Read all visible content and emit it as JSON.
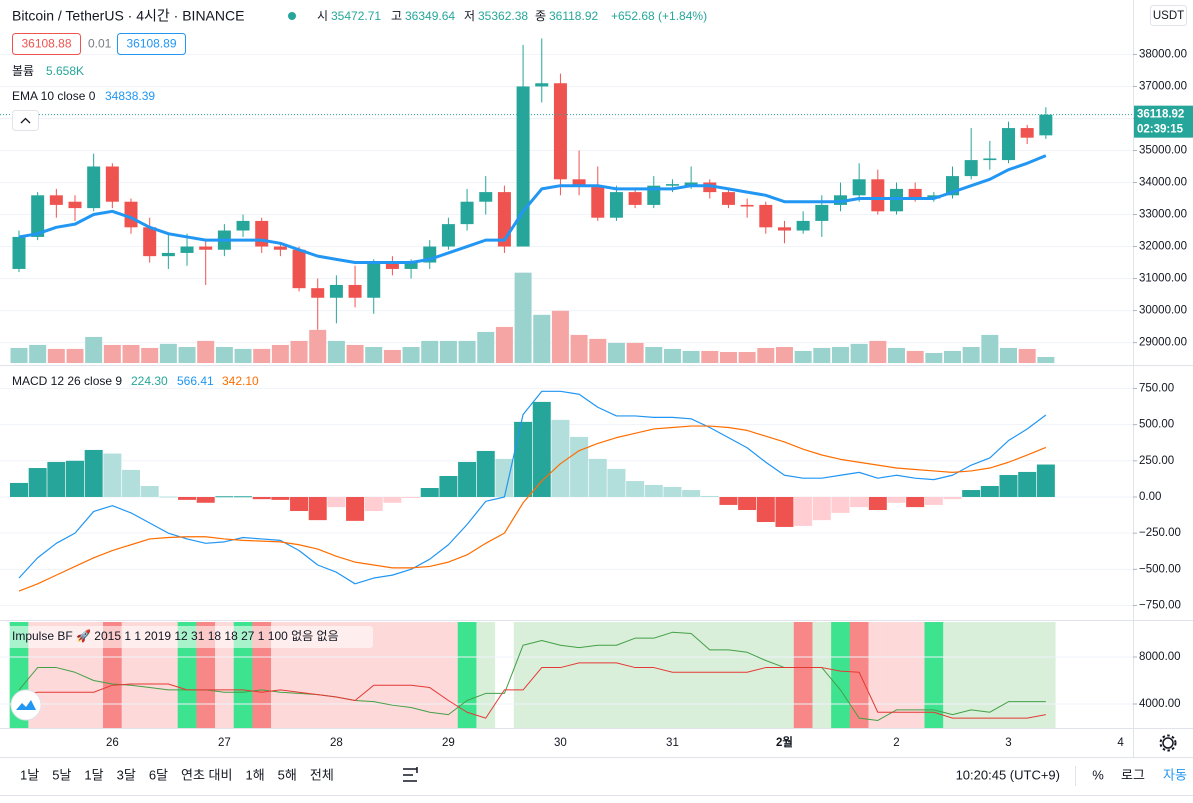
{
  "header": {
    "symbol": "Bitcoin / TetherUS · 4시간 · BINANCE",
    "open_label": "시",
    "high_label": "고",
    "low_label": "저",
    "close_label": "종",
    "change": "+652.68 (+1.84%)",
    "sell_price": "36108.88",
    "spread": "0.01",
    "buy_price": "36108.89",
    "currency": "USDT",
    "countdown": "02:39:15"
  },
  "chart_data": [
    {
      "type": "candlestick",
      "categories": [
        null,
        null,
        null,
        null,
        null,
        "26",
        null,
        null,
        null,
        null,
        null,
        "27",
        null,
        null,
        null,
        null,
        null,
        "28",
        null,
        null,
        null,
        null,
        null,
        "29",
        null,
        null,
        null,
        null,
        null,
        "30",
        null,
        null,
        null,
        null,
        null,
        "31",
        null,
        null,
        null,
        null,
        null,
        "2월",
        null,
        null,
        null,
        null,
        null,
        "2",
        null,
        null,
        null,
        null,
        null,
        "3",
        null,
        null,
        null,
        null,
        null,
        "4"
      ],
      "open": [
        31300,
        32300,
        33600,
        33400,
        33200,
        34500,
        33400,
        32600,
        31700,
        31800,
        32000,
        31900,
        32500,
        32800,
        32000,
        31900,
        30700,
        30400,
        30800,
        30400,
        31500,
        31300,
        31500,
        32000,
        32700,
        33400,
        33700,
        32000,
        37000,
        37100,
        34100,
        33900,
        32900,
        33700,
        33300,
        33900,
        33900,
        34000,
        33700,
        33300,
        33300,
        32600,
        32500,
        32800,
        33300,
        33600,
        34100,
        33100,
        33800,
        33500,
        33600,
        34200,
        34700,
        34700,
        35700,
        35472.71,
        null,
        null,
        null,
        null
      ],
      "high": [
        32500,
        33700,
        33800,
        33600,
        34900,
        34600,
        33500,
        32900,
        32400,
        32400,
        32200,
        32700,
        33000,
        32900,
        32100,
        32000,
        31000,
        31100,
        31400,
        31600,
        31700,
        31600,
        32200,
        32900,
        33800,
        34200,
        33900,
        38300,
        38500,
        37400,
        35000,
        34500,
        33900,
        33800,
        34200,
        34100,
        34500,
        34100,
        33800,
        33500,
        33400,
        32800,
        33100,
        33600,
        34000,
        34600,
        34400,
        34000,
        34000,
        33700,
        34500,
        35700,
        35300,
        35900,
        35800,
        36349.64,
        null,
        null,
        null,
        null
      ],
      "low": [
        31200,
        32200,
        32900,
        32800,
        33100,
        33200,
        32400,
        31500,
        31300,
        31400,
        30800,
        31700,
        32300,
        31800,
        31700,
        30600,
        29400,
        29600,
        30100,
        29900,
        31100,
        31000,
        31300,
        31900,
        32500,
        33000,
        31800,
        32000,
        36500,
        33600,
        33600,
        32800,
        32800,
        33200,
        33200,
        33700,
        33800,
        33500,
        33200,
        32900,
        32400,
        32100,
        32400,
        32300,
        33100,
        33400,
        33000,
        33000,
        33400,
        33400,
        33500,
        34100,
        34400,
        34600,
        35200,
        35362.38,
        null,
        null,
        null,
        null
      ],
      "close": [
        32300,
        33600,
        33300,
        33200,
        34500,
        33400,
        32600,
        31700,
        31800,
        32000,
        31900,
        32500,
        32800,
        32000,
        31900,
        30700,
        30400,
        30800,
        30400,
        31500,
        31300,
        31500,
        32000,
        32700,
        33400,
        33700,
        32000,
        37000,
        37100,
        34100,
        33900,
        32900,
        33700,
        33300,
        33900,
        33950,
        34000,
        33700,
        33300,
        33250,
        32600,
        32500,
        32800,
        33300,
        33600,
        34100,
        33100,
        33800,
        33500,
        33600,
        34200,
        34700,
        34750,
        35700,
        35400,
        36118.92,
        null,
        null,
        null,
        null
      ],
      "colors": {
        "up": "#26a69a",
        "down": "#ef5350",
        "volume_up": "#9ad3cd",
        "volume_down": "#f5a6a4"
      },
      "volume": {
        "name": "볼륨",
        "value_label": "5.658K",
        "ylim": [
          0,
          340000
        ],
        "values": [
          14100,
          16900,
          13200,
          13200,
          24400,
          16900,
          16900,
          14100,
          17900,
          15000,
          20700,
          15000,
          13200,
          13200,
          16900,
          20700,
          31000,
          20700,
          16900,
          15000,
          12200,
          15000,
          20700,
          20700,
          20700,
          29100,
          33800,
          84600,
          45100,
          48900,
          26300,
          22600,
          18800,
          18800,
          15000,
          13200,
          11300,
          11300,
          10300,
          10300,
          14100,
          15000,
          11300,
          14100,
          15000,
          17900,
          20700,
          14100,
          11300,
          9400,
          11300,
          15000,
          26300,
          14100,
          13200,
          5658,
          null,
          null,
          null,
          null
        ]
      },
      "ema": {
        "name": "EMA 10 close 0",
        "color": "#2196f3",
        "values": [
          32300,
          32400,
          32600,
          32700,
          33000,
          33100,
          32900,
          32600,
          32400,
          32300,
          32200,
          32200,
          32200,
          32200,
          32100,
          31900,
          31700,
          31600,
          31500,
          31500,
          31500,
          31500,
          31600,
          31800,
          32000,
          32200,
          32200,
          33100,
          33800,
          33900,
          33900,
          33900,
          33800,
          33800,
          33800,
          33800,
          33900,
          33900,
          33800,
          33700,
          33600,
          33400,
          33400,
          33400,
          33400,
          33500,
          33500,
          33500,
          33500,
          33500,
          33700,
          33900,
          34100,
          34400,
          34600,
          34838.39,
          null,
          null,
          null,
          null
        ]
      },
      "ylim": [
        28300,
        39700
      ],
      "yticks": [
        {
          "value": 29000,
          "label": "29000.00"
        },
        {
          "value": 30000,
          "label": "30000.00"
        },
        {
          "value": 31000,
          "label": "31000.00"
        },
        {
          "value": 32000,
          "label": "32000.00"
        },
        {
          "value": 33000,
          "label": "33000.00"
        },
        {
          "value": 34000,
          "label": "34000.00"
        },
        {
          "value": 35000,
          "label": "35000.00"
        },
        {
          "value": 36000,
          "label": "36000.00"
        },
        {
          "value": 37000,
          "label": "37000.00"
        },
        {
          "value": 38000,
          "label": "38000.00"
        }
      ],
      "grid": true
    },
    {
      "type": "macd",
      "title": "MACD 12 26 close 9",
      "legend_values": [
        "224.30",
        "566.41",
        "342.10"
      ],
      "legend_colors": [
        "#26a69a",
        "#2196f3",
        "#ff6d00"
      ],
      "histogram": {
        "colors": [
          "#26a69a",
          "#b2dfdb",
          "#ef5350",
          "#ffcdd2"
        ],
        "values": [
          97,
          200,
          242,
          250,
          325,
          300,
          187,
          76,
          3,
          -20,
          -40,
          5,
          5,
          -15,
          -20,
          -97,
          -160,
          -70,
          -165,
          -97,
          -40,
          -5,
          62,
          145,
          242,
          318,
          263,
          519,
          657,
          533,
          415,
          263,
          194,
          110,
          83,
          69,
          48,
          7,
          -55,
          -90,
          -173,
          -207,
          -200,
          -160,
          -110,
          -70,
          -90,
          -40,
          -70,
          -55,
          -15,
          48,
          76,
          152,
          173,
          224.3,
          null,
          null,
          null,
          null
        ]
      },
      "macd": {
        "color": "#2196f3",
        "values": [
          -560,
          -420,
          -320,
          -250,
          -100,
          -60,
          -110,
          -180,
          -250,
          -290,
          -320,
          -310,
          -280,
          -290,
          -300,
          -370,
          -470,
          -520,
          -600,
          -560,
          -540,
          -500,
          -430,
          -330,
          -190,
          -30,
          0,
          570,
          730,
          730,
          710,
          620,
          560,
          560,
          550,
          550,
          540,
          480,
          410,
          340,
          240,
          150,
          130,
          130,
          150,
          170,
          130,
          150,
          130,
          120,
          150,
          220,
          270,
          390,
          470,
          566.41,
          null,
          null,
          null,
          null
        ]
      },
      "signal": {
        "color": "#ff6d00",
        "values": [
          -650,
          -600,
          -540,
          -480,
          -420,
          -370,
          -330,
          -290,
          -280,
          -275,
          -275,
          -290,
          -300,
          -305,
          -310,
          -330,
          -360,
          -410,
          -450,
          -470,
          -490,
          -490,
          -480,
          -450,
          -400,
          -320,
          -250,
          -40,
          110,
          230,
          320,
          370,
          410,
          440,
          470,
          480,
          490,
          490,
          480,
          460,
          420,
          380,
          330,
          290,
          260,
          240,
          220,
          200,
          190,
          180,
          170,
          180,
          200,
          240,
          290,
          342.1,
          null,
          null,
          null,
          null
        ]
      },
      "ylim": [
        -850,
        905
      ],
      "yticks": [
        {
          "value": -750,
          "label": "−750.00"
        },
        {
          "value": -500,
          "label": "−500.00"
        },
        {
          "value": -250,
          "label": "−250.00"
        },
        {
          "value": 0,
          "label": "0.00"
        },
        {
          "value": 250,
          "label": "250.00"
        },
        {
          "value": 500,
          "label": "500.00"
        },
        {
          "value": 750,
          "label": "750.00"
        }
      ],
      "grid": true
    },
    {
      "type": "impulse",
      "title": "Impulse BF 🚀 2015 1 1 2019 12 31 18 18 27 1 100 없음 없음",
      "band_colors": [
        "#3ee38f",
        "#fdd9d9",
        "#fdd9d9",
        "#fdd9d9",
        "#fdd9d9",
        "#f88888",
        "#fdd9d9",
        "#fdd9d9",
        "#fdd9d9",
        "#3ee38f",
        "#f88888",
        "#fdd9d9",
        "#3ee38f",
        "#f88888",
        "#fdd9d9",
        "#fdd9d9",
        "#fdd9d9",
        "#fdd9d9",
        "#fdd9d9",
        "#fdd9d9",
        "#fdd9d9",
        "#fdd9d9",
        "#fdd9d9",
        "#fdd9d9",
        "#3ee38f",
        "#d9efd9",
        "#ffffff",
        "#d9efd9",
        "#d9efd9",
        "#d9efd9",
        "#d9efd9",
        "#d9efd9",
        "#d9efd9",
        "#d9efd9",
        "#d9efd9",
        "#d9efd9",
        "#d9efd9",
        "#d9efd9",
        "#d9efd9",
        "#d9efd9",
        "#d9efd9",
        "#d9efd9",
        "#f88888",
        "#d9efd9",
        "#3ee38f",
        "#f88888",
        "#fdd9d9",
        "#fdd9d9",
        "#fdd9d9",
        "#3ee38f",
        "#d9efd9",
        "#d9efd9",
        "#d9efd9",
        "#d9efd9",
        "#d9efd9",
        "#d9efd9",
        null,
        null,
        null,
        null
      ],
      "series": [
        {
          "color": "#43a047",
          "values": [
            5200,
            7100,
            7100,
            6700,
            6000,
            5700,
            5600,
            5400,
            5200,
            5200,
            5200,
            5000,
            5000,
            5200,
            5000,
            4900,
            4800,
            4600,
            4300,
            4200,
            3900,
            3700,
            3300,
            3100,
            4300,
            4900,
            4900,
            9000,
            9400,
            9000,
            8800,
            9000,
            9000,
            9600,
            9600,
            10100,
            10000,
            8600,
            8600,
            8400,
            7700,
            7100,
            7100,
            7100,
            5200,
            2800,
            2600,
            3500,
            3500,
            3500,
            3100,
            3500,
            3300,
            4200,
            4200,
            4200,
            null,
            null,
            null,
            null
          ]
        },
        {
          "color": "#e53935",
          "values": [
            4800,
            5000,
            5000,
            5000,
            5000,
            5600,
            5700,
            5700,
            5700,
            5200,
            5200,
            5200,
            5200,
            5000,
            5200,
            5000,
            4800,
            4600,
            4300,
            5600,
            5600,
            5600,
            5400,
            4300,
            3300,
            2800,
            5200,
            5200,
            7100,
            7100,
            7500,
            7500,
            7500,
            7100,
            7100,
            6700,
            6700,
            6700,
            6700,
            6700,
            7100,
            7100,
            7100,
            7100,
            6800,
            6700,
            3300,
            3300,
            3300,
            3300,
            2800,
            2800,
            2800,
            2800,
            2800,
            3100,
            null,
            null,
            null,
            null
          ]
        }
      ],
      "ylim": [
        1960,
        11060
      ],
      "yticks": [
        {
          "value": 4000,
          "label": "4000.00"
        },
        {
          "value": 8000,
          "label": "8000.00"
        }
      ],
      "grid": true
    }
  ],
  "toolbar": {
    "ranges": [
      "1날",
      "5날",
      "1달",
      "3달",
      "6달",
      "연초 대비",
      "1해",
      "5해",
      "전체"
    ],
    "time": "10:20:45 (UTC+9)",
    "percent": "%",
    "log": "로그",
    "auto": "자동"
  }
}
